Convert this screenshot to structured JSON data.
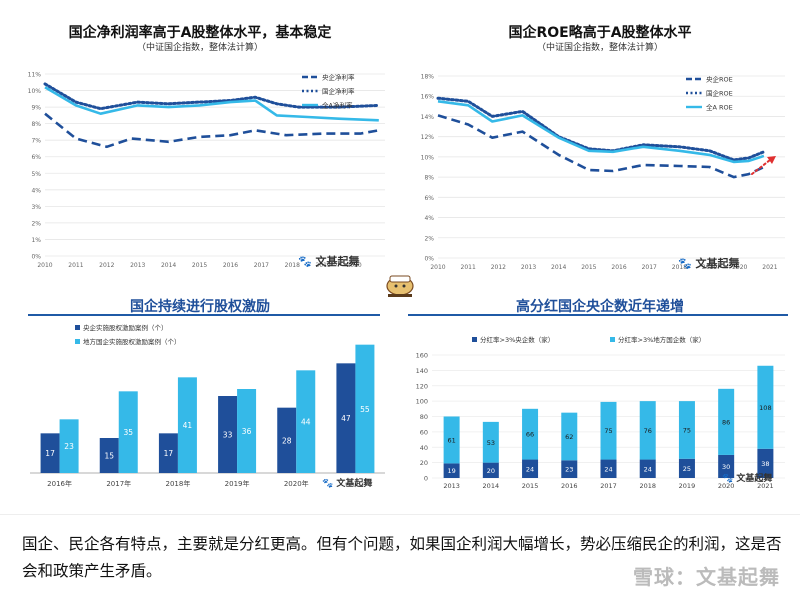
{
  "charts_titles": {
    "c1_title": "国企净利润率高于A股整体水平，基本稳定",
    "c1_subtitle": "（中证国企指数，整体法计算）",
    "c2_title": "国企ROE略高于A股整体水平",
    "c2_subtitle": "（中证国企指数，整体法计算）",
    "c3_title": "国企持续进行股权激励",
    "c4_title": "高分红国企央企数近年递增"
  },
  "watermark": "文基起舞",
  "caption": "国企、民企各有特点，主要就是分红更高。但有个问题，如果国企利润大幅增长，势必压缩民企的利润，这是否会和政策产生矛盾。",
  "xueqiu_logo": "雪球：文基起舞",
  "colors": {
    "dark_blue": "#1f4f9a",
    "light_blue": "#35b9e8",
    "red_arrow": "#e03030",
    "title_blue": "#1f4f9a"
  },
  "chart_data": [
    {
      "type": "line",
      "title": "国企净利润率高于A股整体水平，基本稳定",
      "subtitle": "（中证国企指数，整体法计算）",
      "x": [
        "2010",
        "2011",
        "2012",
        "2013",
        "2014",
        "2015",
        "2016",
        "2017",
        "2018",
        "2019",
        "2020"
      ],
      "xlim": [
        2010,
        2021
      ],
      "ylim": [
        0,
        11
      ],
      "yticks": [
        "0%",
        "1%",
        "2%",
        "3%",
        "4%",
        "5%",
        "6%",
        "7%",
        "8%",
        "9%",
        "10%",
        "11%"
      ],
      "legend_position": "top-right",
      "series": [
        {
          "name": "央企净利率",
          "style": "dashed",
          "color": "#1f4f9a",
          "points": [
            [
              2010.0,
              8.6
            ],
            [
              2011.0,
              7.1
            ],
            [
              2012.0,
              6.6
            ],
            [
              2012.8,
              7.1
            ],
            [
              2014.0,
              6.9
            ],
            [
              2015.0,
              7.2
            ],
            [
              2016.0,
              7.3
            ],
            [
              2016.8,
              7.6
            ],
            [
              2017.8,
              7.3
            ],
            [
              2019.0,
              7.4
            ],
            [
              2020.2,
              7.4
            ],
            [
              2020.8,
              7.6
            ]
          ]
        },
        {
          "name": "国企净利率",
          "style": "dotted",
          "color": "#1f4f9a",
          "points": [
            [
              2010.0,
              10.4
            ],
            [
              2011.0,
              9.3
            ],
            [
              2011.8,
              8.9
            ],
            [
              2013.0,
              9.3
            ],
            [
              2014.0,
              9.2
            ],
            [
              2015.0,
              9.3
            ],
            [
              2016.0,
              9.4
            ],
            [
              2016.8,
              9.6
            ],
            [
              2017.5,
              9.2
            ],
            [
              2018.2,
              9.0
            ],
            [
              2019.5,
              9.0
            ],
            [
              2020.8,
              9.1
            ]
          ]
        },
        {
          "name": "全A净利率",
          "style": "solid",
          "color": "#35b9e8",
          "points": [
            [
              2010.0,
              10.2
            ],
            [
              2011.0,
              9.1
            ],
            [
              2011.8,
              8.6
            ],
            [
              2013.0,
              9.1
            ],
            [
              2014.0,
              9.0
            ],
            [
              2015.0,
              9.1
            ],
            [
              2016.0,
              9.3
            ],
            [
              2016.8,
              9.4
            ],
            [
              2017.5,
              8.5
            ],
            [
              2018.5,
              8.4
            ],
            [
              2019.5,
              8.3
            ],
            [
              2020.8,
              8.2
            ]
          ]
        }
      ]
    },
    {
      "type": "line",
      "title": "国企ROE略高于A股整体水平",
      "subtitle": "（中证国企指数，整体法计算）",
      "x": [
        "2010",
        "2011",
        "2012",
        "2013",
        "2014",
        "2015",
        "2016",
        "2017",
        "2018",
        "2019",
        "2020",
        "2021"
      ],
      "xlim": [
        2010,
        2021.5
      ],
      "ylim": [
        0,
        18
      ],
      "yticks": [
        "0%",
        "2%",
        "4%",
        "6%",
        "8%",
        "10%",
        "12%",
        "14%",
        "16%",
        "18%"
      ],
      "legend_position": "top-right",
      "series": [
        {
          "name": "央企ROE",
          "style": "dashed",
          "color": "#1f4f9a",
          "points": [
            [
              2010.0,
              14.1
            ],
            [
              2011.0,
              13.2
            ],
            [
              2011.8,
              11.9
            ],
            [
              2012.8,
              12.5
            ],
            [
              2014.0,
              10.2
            ],
            [
              2015.0,
              8.7
            ],
            [
              2015.8,
              8.6
            ],
            [
              2016.8,
              9.2
            ],
            [
              2018.0,
              9.1
            ],
            [
              2019.0,
              9.0
            ],
            [
              2019.8,
              8.0
            ],
            [
              2020.3,
              8.3
            ],
            [
              2020.8,
              9.0
            ]
          ]
        },
        {
          "name": "国企ROE",
          "style": "dotted",
          "color": "#1f4f9a",
          "points": [
            [
              2010.0,
              15.8
            ],
            [
              2011.0,
              15.5
            ],
            [
              2011.8,
              14.0
            ],
            [
              2012.8,
              14.5
            ],
            [
              2014.0,
              12.0
            ],
            [
              2015.0,
              10.8
            ],
            [
              2015.8,
              10.6
            ],
            [
              2016.8,
              11.2
            ],
            [
              2018.0,
              11.0
            ],
            [
              2019.0,
              10.6
            ],
            [
              2019.8,
              9.7
            ],
            [
              2020.3,
              9.9
            ],
            [
              2020.8,
              10.5
            ]
          ]
        },
        {
          "name": "全A ROE",
          "style": "solid",
          "color": "#35b9e8",
          "points": [
            [
              2010.0,
              15.5
            ],
            [
              2011.0,
              15.1
            ],
            [
              2011.8,
              13.5
            ],
            [
              2012.8,
              14.1
            ],
            [
              2014.0,
              11.9
            ],
            [
              2015.0,
              10.6
            ],
            [
              2015.8,
              10.5
            ],
            [
              2016.8,
              11.0
            ],
            [
              2018.0,
              10.6
            ],
            [
              2019.0,
              10.2
            ],
            [
              2019.8,
              9.5
            ],
            [
              2020.3,
              9.6
            ],
            [
              2020.8,
              10.1
            ]
          ]
        }
      ],
      "annotation": "red dotted arrow indicating expected upward trend in 2021"
    },
    {
      "type": "bar",
      "title": "国企持续进行股权激励",
      "categories": [
        "2016年",
        "2017年",
        "2018年",
        "2019年",
        "2020年",
        "2021年"
      ],
      "ylim": [
        0,
        60
      ],
      "legend_position": "top-left",
      "series": [
        {
          "name": "央企实施股权激励案例（个）",
          "color": "#1f4f9a",
          "values": [
            17,
            15,
            17,
            33,
            28,
            47
          ]
        },
        {
          "name": "地方国企实施股权激励案例（个）",
          "color": "#35b9e8",
          "values": [
            23,
            35,
            41,
            36,
            44,
            55
          ]
        }
      ],
      "visible_category_labels": [
        "2016年",
        "2017年",
        "2018年",
        "2019年",
        "2020年",
        ""
      ]
    },
    {
      "type": "bar",
      "title": "高分红国企央企数近年递增",
      "stacked": true,
      "categories": [
        "2013",
        "2014",
        "2015",
        "2016",
        "2017",
        "2018",
        "2019",
        "2020",
        "2021"
      ],
      "ylim": [
        0,
        160
      ],
      "yticks": [
        "0",
        "20",
        "40",
        "60",
        "80",
        "100",
        "120",
        "140",
        "160"
      ],
      "legend_position": "top",
      "series": [
        {
          "name": "分红率>3%央企数（家）",
          "color": "#1f4f9a",
          "values": [
            19,
            20,
            24,
            23,
            24,
            24,
            25,
            30,
            38
          ]
        },
        {
          "name": "分红率>3%地方国企数（家）",
          "color": "#35b9e8",
          "values": [
            61,
            53,
            66,
            62,
            75,
            76,
            75,
            86,
            108
          ]
        }
      ]
    }
  ]
}
